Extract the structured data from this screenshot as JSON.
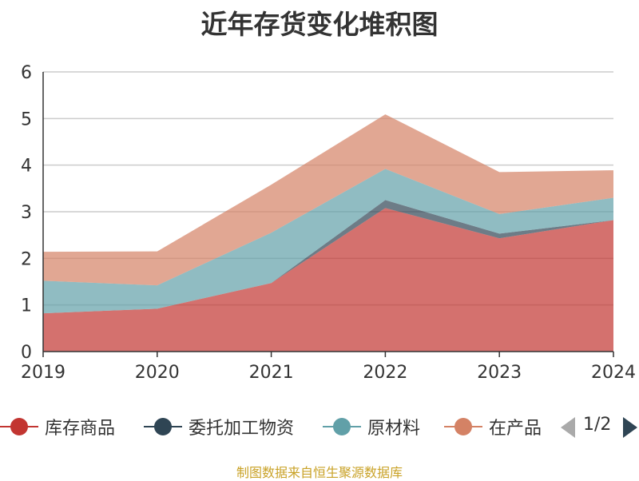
{
  "chart_data": {
    "type": "area",
    "stacked": true,
    "title": "近年存货变化堆积图",
    "x": [
      "2019",
      "2020",
      "2021",
      "2022",
      "2023",
      "2024"
    ],
    "ylim": [
      0,
      6
    ],
    "yticks": [
      "0",
      "1",
      "2",
      "3",
      "4",
      "5",
      "6"
    ],
    "grid": true,
    "series": [
      {
        "name": "库存商品",
        "color": "#c23531",
        "values": [
          0.82,
          0.92,
          1.47,
          3.08,
          2.43,
          2.82
        ]
      },
      {
        "name": "委托加工物资",
        "color": "#2f4554",
        "values": [
          0.0,
          0.0,
          0.0,
          0.17,
          0.1,
          0.0
        ]
      },
      {
        "name": "原材料",
        "color": "#61a0a8",
        "values": [
          0.7,
          0.5,
          1.08,
          0.67,
          0.42,
          0.48
        ]
      },
      {
        "name": "在产品",
        "color": "#d48265",
        "values": [
          0.62,
          0.73,
          1.03,
          1.17,
          0.9,
          0.59
        ]
      }
    ]
  },
  "legend": {
    "items": [
      {
        "name": "库存商品",
        "color": "#c23531"
      },
      {
        "name": "委托加工物资",
        "color": "#2f4554"
      },
      {
        "name": "原材料",
        "color": "#61a0a8"
      },
      {
        "name": "在产品",
        "color": "#d48265"
      }
    ],
    "page_text": "1/2"
  },
  "source_note": "制图数据来自恒生聚源数据库"
}
